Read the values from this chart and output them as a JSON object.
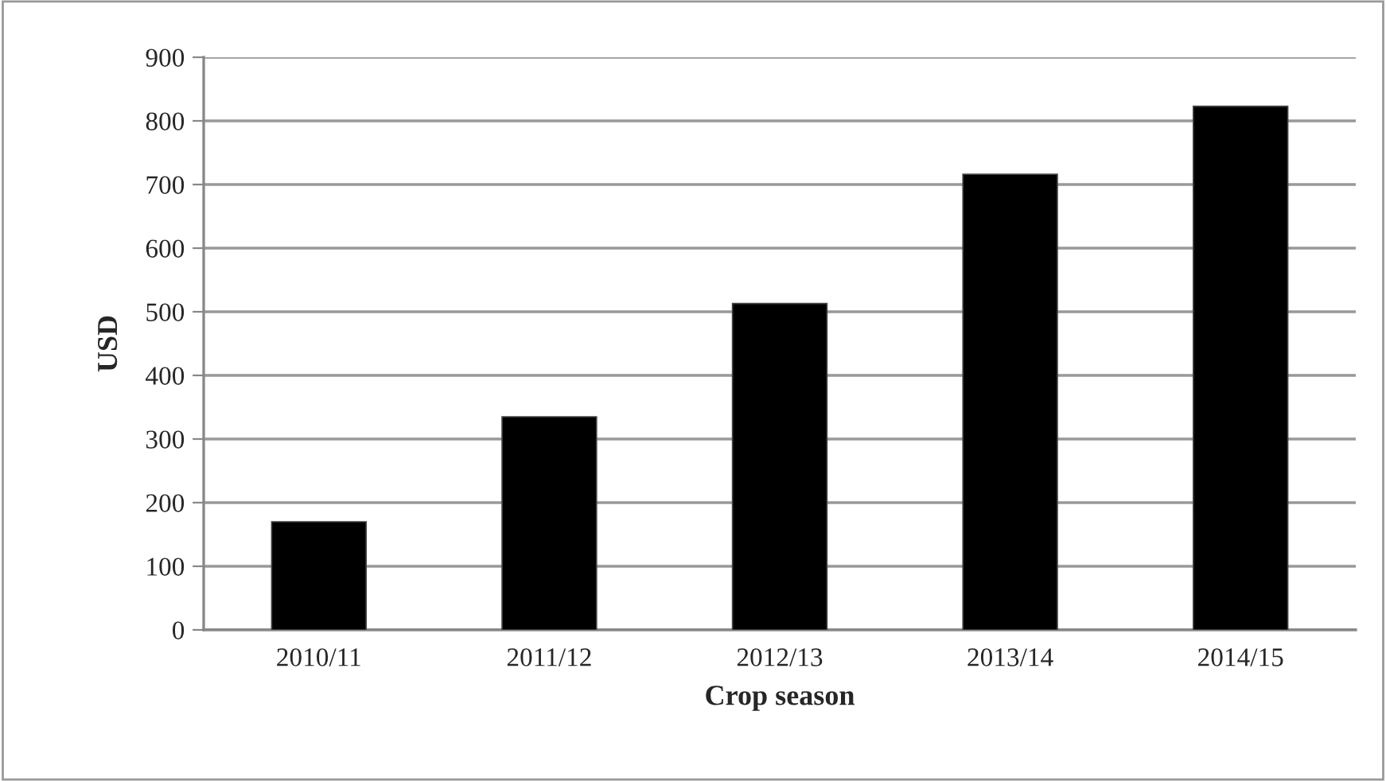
{
  "chart_data": {
    "type": "bar",
    "xlabel": "Crop season",
    "ylabel": "USD",
    "categories": [
      "2010/11",
      "2011/12",
      "2012/13",
      "2013/14",
      "2014/15"
    ],
    "values": [
      170,
      335,
      513,
      716,
      823
    ],
    "color": "#000000",
    "ylim": [
      0,
      900
    ],
    "yticks": [
      0,
      100,
      200,
      300,
      400,
      500,
      600,
      700,
      800,
      900
    ],
    "grid": "y",
    "legend": false
  }
}
